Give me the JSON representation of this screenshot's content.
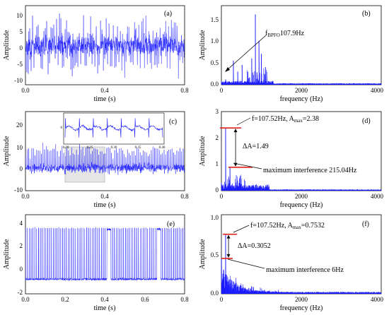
{
  "colors": {
    "signal": "#1a1aff",
    "marker": "#e0201a",
    "axis": "#000000",
    "zoom_box": "#cfcfcf"
  },
  "chart_data": [
    {
      "id": "a",
      "type": "line",
      "tag": "(a)",
      "xlabel": "time (s)",
      "ylabel": "Amplitude",
      "xlim": [
        0,
        0.8
      ],
      "ylim": [
        -12,
        12
      ],
      "xticks": [
        "0.0",
        "0.4",
        "0.8"
      ],
      "yticks": [
        "10",
        "5",
        "0",
        "-5",
        "-10"
      ],
      "description_values": {
        "noise_range": [
          -10,
          10
        ]
      }
    },
    {
      "id": "b",
      "type": "line",
      "tag": "(b)",
      "xlabel": "frequency (Hz)",
      "ylabel": "Amplitude",
      "xlim": [
        0,
        4000
      ],
      "ylim": [
        0,
        1.8
      ],
      "xticks": [
        "0",
        "2000",
        "4000"
      ],
      "yticks": [
        "1.5",
        "1.0",
        "0.5",
        "0.0"
      ],
      "annotation": {
        "text_main": "f",
        "text_sub": "BPFO",
        "text_tail": "107.9Hz",
        "freq": 107.9
      },
      "peaks": [
        {
          "f": 107.9,
          "a": 0.12
        },
        {
          "f": 300,
          "a": 0.55
        },
        {
          "f": 410,
          "a": 0.3
        },
        {
          "f": 520,
          "a": 0.45
        },
        {
          "f": 760,
          "a": 0.6
        },
        {
          "f": 850,
          "a": 1.6
        },
        {
          "f": 940,
          "a": 1.0
        },
        {
          "f": 1000,
          "a": 0.7
        },
        {
          "f": 1100,
          "a": 0.4
        }
      ]
    },
    {
      "id": "c",
      "type": "line",
      "tag": "(c)",
      "xlabel": "time (s)",
      "ylabel": "",
      "xlim": [
        0,
        0.8
      ],
      "ylim": [
        -10,
        25
      ],
      "xticks": [
        "0.0",
        "0.4",
        "0.8"
      ],
      "yticks": [
        "20",
        "10",
        "0",
        "-10"
      ],
      "inset": {
        "xticks": [
          "0.20",
          "0.25",
          "0.30",
          "0.35",
          "0.40"
        ],
        "ytick": "0",
        "xlim": [
          0.2,
          0.4
        ]
      },
      "zoom_region": [
        0.2,
        0.4
      ]
    },
    {
      "id": "d",
      "type": "line",
      "tag": "(d)",
      "xlabel": "frequency (Hz)",
      "ylabel": "Amplitude",
      "xlim": [
        0,
        4000
      ],
      "ylim": [
        0,
        3
      ],
      "xticks": [
        "0",
        "2000",
        "4000"
      ],
      "yticks": [
        "3",
        "2",
        "1",
        "0"
      ],
      "fault_freq": 107.52,
      "fault_amp": 2.38,
      "interference_freq": 215.04,
      "interference_amp": 0.89,
      "delta": "1.49",
      "label_fault": "f=107.52Hz, A",
      "label_fault_sub": "max",
      "label_fault_tail": "=2.38",
      "label_interference": "maximum interference 215.04Hz",
      "label_delta": "ΔA=1.49"
    },
    {
      "id": "e",
      "type": "line",
      "tag": "(e)",
      "xlabel": "time (s)",
      "ylabel": "",
      "xlim": [
        0,
        0.8
      ],
      "ylim": [
        -2,
        4.5
      ],
      "xticks": [
        "0.0",
        "0.2",
        "0.4",
        "0.6",
        "0.8"
      ],
      "yticks": [
        "4",
        "2",
        "0",
        "-2"
      ]
    },
    {
      "id": "f",
      "type": "line",
      "tag": "(f)",
      "xlabel": "frequency (Hz)",
      "ylabel": "Amplitude",
      "xlim": [
        0,
        4000
      ],
      "ylim": [
        0,
        1.0
      ],
      "xticks": [
        "0",
        "2000",
        "4000"
      ],
      "yticks": [
        "1.0",
        "0.5",
        "0.0"
      ],
      "fault_freq": 107.52,
      "fault_amp": 0.7532,
      "interference_freq": 6,
      "interference_amp": 0.448,
      "label_fault": "f=107.52Hz, A",
      "label_fault_sub": "max",
      "label_fault_tail": "=0.7532",
      "label_interference": "maximum interference 6Hz",
      "label_delta": "ΔA=0.3052"
    }
  ]
}
